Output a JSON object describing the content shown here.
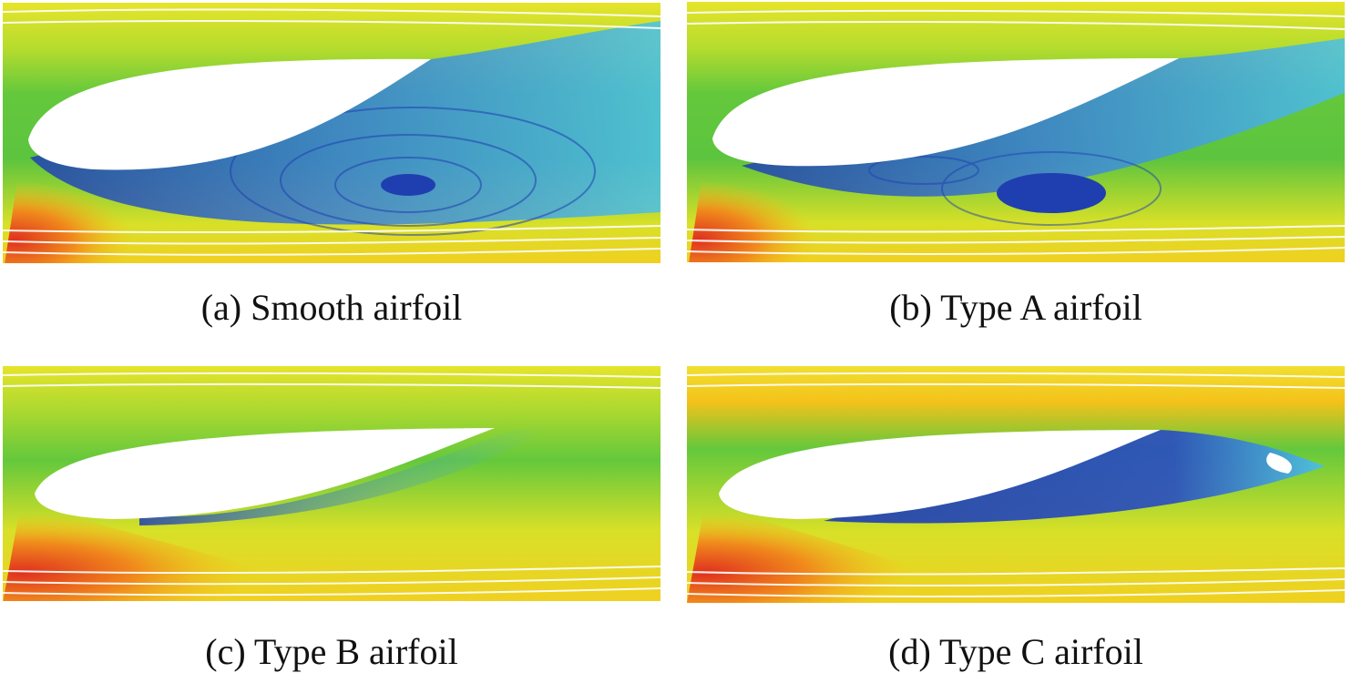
{
  "panels": [
    {
      "id": "a",
      "caption": "(a) Smooth airfoil"
    },
    {
      "id": "b",
      "caption": "(b) Type A airfoil"
    },
    {
      "id": "c",
      "caption": "(c) Type B airfoil"
    },
    {
      "id": "d",
      "caption": "(d) Type C airfoil"
    }
  ],
  "colors": {
    "high_velocity": "#e0301e",
    "mid_high": "#f4c21a",
    "mid": "#d8e324",
    "mid_low": "#5cc83a",
    "low": "#3fb4ea",
    "separation": "#1f3fb0",
    "airfoil": "#ffffff"
  }
}
